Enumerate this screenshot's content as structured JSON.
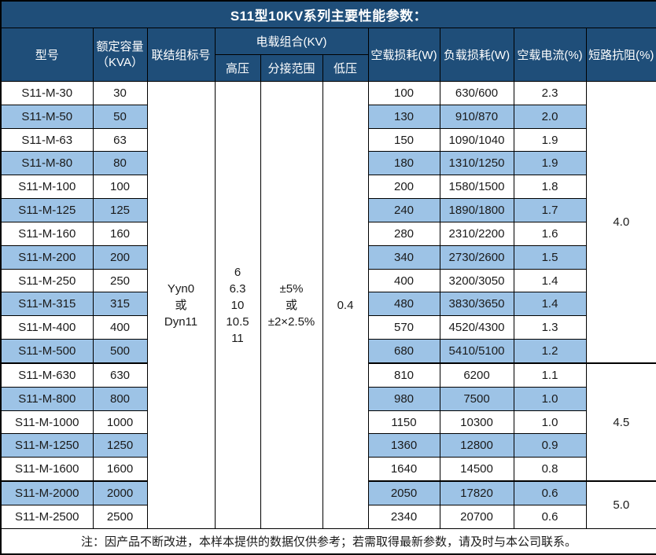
{
  "title": "S11型10KV系列主要性能参数：",
  "header": {
    "model": "型号",
    "capacity_line1": "额定容量",
    "capacity_line2": "（KVA）",
    "connection": "联结组标号",
    "voltage_group": "电载组合(KV)",
    "hv": "高压",
    "tap_range": "分接范围",
    "lv": "低压",
    "no_load_loss": "空载损耗(W)",
    "load_loss": "负载损耗(W)",
    "no_load_current": "空载电流(%)",
    "impedance": "短路抗阻(%)"
  },
  "merged": {
    "connection_lines": [
      "Yyn0",
      "或",
      "Dyn11"
    ],
    "hv_lines": [
      "6",
      "6.3",
      "10",
      "10.5",
      "11"
    ],
    "tap_lines": [
      "±5%",
      "或",
      "±2×2.5%"
    ],
    "lv": "0.4"
  },
  "impedance_groups": [
    {
      "value": "4.0",
      "rows": 12
    },
    {
      "value": "4.5",
      "rows": 5
    },
    {
      "value": "5.0",
      "rows": 2
    }
  ],
  "rows": [
    {
      "model": "S11-M-30",
      "capacity": "30",
      "no_load_loss": "100",
      "load_loss": "630/600",
      "no_load_current": "2.3"
    },
    {
      "model": "S11-M-50",
      "capacity": "50",
      "no_load_loss": "130",
      "load_loss": "910/870",
      "no_load_current": "2.0"
    },
    {
      "model": "S11-M-63",
      "capacity": "63",
      "no_load_loss": "150",
      "load_loss": "1090/1040",
      "no_load_current": "1.9"
    },
    {
      "model": "S11-M-80",
      "capacity": "80",
      "no_load_loss": "180",
      "load_loss": "1310/1250",
      "no_load_current": "1.9"
    },
    {
      "model": "S11-M-100",
      "capacity": "100",
      "no_load_loss": "200",
      "load_loss": "1580/1500",
      "no_load_current": "1.8"
    },
    {
      "model": "S11-M-125",
      "capacity": "125",
      "no_load_loss": "240",
      "load_loss": "1890/1800",
      "no_load_current": "1.7"
    },
    {
      "model": "S11-M-160",
      "capacity": "160",
      "no_load_loss": "280",
      "load_loss": "2310/2200",
      "no_load_current": "1.6"
    },
    {
      "model": "S11-M-200",
      "capacity": "200",
      "no_load_loss": "340",
      "load_loss": "2730/2600",
      "no_load_current": "1.5"
    },
    {
      "model": "S11-M-250",
      "capacity": "250",
      "no_load_loss": "400",
      "load_loss": "3200/3050",
      "no_load_current": "1.4"
    },
    {
      "model": "S11-M-315",
      "capacity": "315",
      "no_load_loss": "480",
      "load_loss": "3830/3650",
      "no_load_current": "1.4"
    },
    {
      "model": "S11-M-400",
      "capacity": "400",
      "no_load_loss": "570",
      "load_loss": "4520/4300",
      "no_load_current": "1.3"
    },
    {
      "model": "S11-M-500",
      "capacity": "500",
      "no_load_loss": "680",
      "load_loss": "5410/5100",
      "no_load_current": "1.2"
    },
    {
      "model": "S11-M-630",
      "capacity": "630",
      "no_load_loss": "810",
      "load_loss": "6200",
      "no_load_current": "1.1"
    },
    {
      "model": "S11-M-800",
      "capacity": "800",
      "no_load_loss": "980",
      "load_loss": "7500",
      "no_load_current": "1.0"
    },
    {
      "model": "S11-M-1000",
      "capacity": "1000",
      "no_load_loss": "1150",
      "load_loss": "10300",
      "no_load_current": "1.0"
    },
    {
      "model": "S11-M-1250",
      "capacity": "1250",
      "no_load_loss": "1360",
      "load_loss": "12800",
      "no_load_current": "0.9"
    },
    {
      "model": "S11-M-1600",
      "capacity": "1600",
      "no_load_loss": "1640",
      "load_loss": "14500",
      "no_load_current": "0.8"
    },
    {
      "model": "S11-M-2000",
      "capacity": "2000",
      "no_load_loss": "2050",
      "load_loss": "17820",
      "no_load_current": "0.6"
    },
    {
      "model": "S11-M-2500",
      "capacity": "2500",
      "no_load_loss": "2340",
      "load_loss": "20700",
      "no_load_current": "0.6"
    }
  ],
  "note": "注：因产品不断改进，本样本提供的数据仅供参考；若需取得最新参数，请及时与本公司联系。",
  "colors": {
    "header_bg": "#1F4E79",
    "alt_row_bg": "#9DC3E6",
    "border": "#000000",
    "header_text": "#FFFFFF"
  }
}
